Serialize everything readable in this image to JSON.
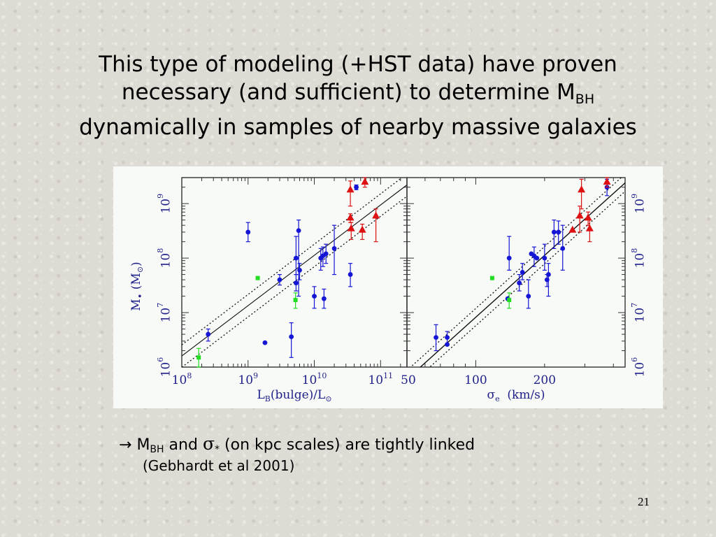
{
  "title": {
    "line1": "This type of modeling (+HST data) have proven",
    "line2_pre": "necessary (and sufficient) to determine M",
    "line2_sub": "BH",
    "line3": "dynamically in samples of nearby massive galaxies"
  },
  "chart_data": [
    {
      "type": "scatter",
      "title": "",
      "xlabel": "L_B(bulge)/L_⊙",
      "ylabel": "M_• (M_⊙)",
      "xscale": "log",
      "yscale": "log",
      "xlim": [
        100000000.0,
        250000000000.0
      ],
      "ylim": [
        1000000.0,
        3000000000.0
      ],
      "x_ticks": [
        "10^8",
        "10^9",
        "10^10",
        "10^11"
      ],
      "y_ticks": [
        "10^6",
        "10^7",
        "10^8",
        "10^9"
      ],
      "fit_lines": [
        "best fit",
        "lower bound",
        "upper bound"
      ],
      "series": [
        {
          "marker": "circle",
          "color": "#1515d6",
          "points": [
            {
              "x": 250000000.0,
              "y": 4000000.0,
              "ylo": 3000000.0,
              "yhi": 5000000.0
            },
            {
              "x": 1000000000.0,
              "y": 300000000.0,
              "ylo": 200000000.0,
              "yhi": 450000000.0
            },
            {
              "x": 1800000000.0,
              "y": 2800000.0
            },
            {
              "x": 3000000000.0,
              "y": 40000000.0,
              "ylo": 32000000.0,
              "yhi": 50000000.0
            },
            {
              "x": 4500000000.0,
              "y": 3600000.0,
              "ylo": 1500000.0,
              "yhi": 6500000.0
            },
            {
              "x": 5300000000.0,
              "y": 100000000.0,
              "ylo": 50000000.0,
              "yhi": 250000000.0
            },
            {
              "x": 5300000000.0,
              "y": 35000000.0,
              "ylo": 25000000.0,
              "yhi": 50000000.0
            },
            {
              "x": 5800000000.0,
              "y": 320000000.0,
              "ylo": 20000000.0,
              "yhi": 500000000.0
            },
            {
              "x": 6000000000.0,
              "y": 60000000.0,
              "ylo": 40000000.0,
              "yhi": 80000000.0
            },
            {
              "x": 10000000000.0,
              "y": 20000000.0,
              "ylo": 12000000.0,
              "yhi": 30000000.0
            },
            {
              "x": 12500000000.0,
              "y": 100000000.0,
              "ylo": 60000000.0,
              "yhi": 150000000.0
            },
            {
              "x": 13500000000.0,
              "y": 110000000.0,
              "ylo": 70000000.0,
              "yhi": 160000000.0
            },
            {
              "x": 14000000000.0,
              "y": 18000000.0,
              "ylo": 12000000.0,
              "yhi": 27000000.0
            },
            {
              "x": 15000000000.0,
              "y": 120000000.0,
              "ylo": 80000000.0,
              "yhi": 180000000.0
            },
            {
              "x": 20000000000.0,
              "y": 150000000.0,
              "ylo": 50000000.0,
              "yhi": 400000000.0
            },
            {
              "x": 35000000000.0,
              "y": 50000000.0,
              "ylo": 30000000.0,
              "yhi": 80000000.0
            },
            {
              "x": 43000000000.0,
              "y": 2000000000.0,
              "ylo": 1800000000.0,
              "yhi": 2200000000.0
            }
          ]
        },
        {
          "marker": "square",
          "color": "#22dd22",
          "points": [
            {
              "x": 180000000.0,
              "y": 1500000.0,
              "ylo": 1000000.0,
              "yhi": 2200000.0
            },
            {
              "x": 1400000000.0,
              "y": 43000000.0
            },
            {
              "x": 5200000000.0,
              "y": 17000000.0,
              "ylo": 12000000.0,
              "yhi": 23000000.0
            }
          ]
        },
        {
          "marker": "triangle",
          "color": "#dd1111",
          "points": [
            {
              "x": 35000000000.0,
              "y": 1800000000.0,
              "ylo": 900000000.0,
              "yhi": 2600000000.0
            },
            {
              "x": 35000000000.0,
              "y": 550000000.0,
              "ylo": 450000000.0,
              "yhi": 650000000.0
            },
            {
              "x": 36000000000.0,
              "y": 350000000.0,
              "ylo": 220000000.0,
              "yhi": 450000000.0
            },
            {
              "x": 53000000000.0,
              "y": 330000000.0,
              "ylo": 220000000.0,
              "yhi": 420000000.0
            },
            {
              "x": 58000000000.0,
              "y": 2500000000.0,
              "ylo": 2000000000.0,
              "yhi": 3000000000.0
            },
            {
              "x": 85000000000.0,
              "y": 600000000.0,
              "ylo": 200000000.0,
              "yhi": 800000000.0
            }
          ]
        }
      ]
    },
    {
      "type": "scatter",
      "title": "",
      "xlabel": "σ_e (km/s)",
      "ylabel": "",
      "xscale": "log",
      "yscale": "log",
      "xlim": [
        50,
        450
      ],
      "ylim": [
        1000000.0,
        3000000000.0
      ],
      "x_ticks": [
        "50",
        "100",
        "200"
      ],
      "y_ticks": [
        "10^6",
        "10^7",
        "10^8",
        "10^9"
      ],
      "fit_lines": [
        "best fit",
        "lower bound",
        "upper bound"
      ],
      "series": [
        {
          "marker": "circle",
          "color": "#1515d6",
          "points": [
            {
              "x": 67,
              "y": 3500000.0,
              "ylo": 2000000.0,
              "yhi": 6000000.0
            },
            {
              "x": 75,
              "y": 3500000.0,
              "ylo": 2500000.0,
              "yhi": 4500000.0
            },
            {
              "x": 75,
              "y": 2600000.0
            },
            {
              "x": 138,
              "y": 18000000.0
            },
            {
              "x": 140,
              "y": 100000000.0,
              "ylo": 60000000.0,
              "yhi": 250000000.0
            },
            {
              "x": 155,
              "y": 35000000.0,
              "ylo": 25000000.0,
              "yhi": 50000000.0
            },
            {
              "x": 160,
              "y": 55000000.0,
              "ylo": 40000000.0,
              "yhi": 80000000.0
            },
            {
              "x": 170,
              "y": 20000000.0,
              "ylo": 12000000.0,
              "yhi": 40000000.0
            },
            {
              "x": 175,
              "y": 120000000.0
            },
            {
              "x": 180,
              "y": 110000000.0,
              "ylo": 70000000.0,
              "yhi": 160000000.0
            },
            {
              "x": 185,
              "y": 100000000.0
            },
            {
              "x": 200,
              "y": 100000000.0,
              "ylo": 60000000.0,
              "yhi": 180000000.0
            },
            {
              "x": 205,
              "y": 40000000.0,
              "ylo": 30000000.0,
              "yhi": 50000000.0
            },
            {
              "x": 208,
              "y": 50000000.0,
              "ylo": 20000000.0,
              "yhi": 80000000.0
            },
            {
              "x": 220,
              "y": 300000000.0,
              "ylo": 150000000.0,
              "yhi": 500000000.0
            },
            {
              "x": 230,
              "y": 300000000.0,
              "ylo": 180000000.0,
              "yhi": 480000000.0
            },
            {
              "x": 240,
              "y": 150000000.0,
              "ylo": 60000000.0,
              "yhi": 400000000.0
            },
            {
              "x": 375,
              "y": 2000000000.0,
              "ylo": 1400000000.0,
              "yhi": 2800000000.0
            }
          ]
        },
        {
          "marker": "square",
          "color": "#22dd22",
          "points": [
            {
              "x": 118,
              "y": 43000000.0
            },
            {
              "x": 140,
              "y": 17000000.0,
              "ylo": 12000000.0,
              "yhi": 23000000.0
            }
          ]
        },
        {
          "marker": "triangle",
          "color": "#dd1111",
          "points": [
            {
              "x": 265,
              "y": 330000000.0
            },
            {
              "x": 285,
              "y": 600000000.0,
              "ylo": 300000000.0,
              "yhi": 900000000.0
            },
            {
              "x": 290,
              "y": 1800000000.0,
              "ylo": 800000000.0,
              "yhi": 2800000000.0
            },
            {
              "x": 310,
              "y": 550000000.0,
              "ylo": 400000000.0,
              "yhi": 700000000.0
            },
            {
              "x": 315,
              "y": 350000000.0,
              "ylo": 200000000.0,
              "yhi": 500000000.0
            },
            {
              "x": 375,
              "y": 2500000000.0,
              "ylo": 2000000000.0,
              "yhi": 3000000000.0
            }
          ]
        }
      ]
    }
  ],
  "caption": {
    "arrow": "→",
    "m": "M",
    "m_sub": "BH",
    "and_text": " and ",
    "sigma": "σ",
    "sigma_sub": "*",
    "rest": " (on kpc scales) are tightly linked",
    "citation": "(Gebhardt et al 2001)"
  },
  "page_number": "21"
}
